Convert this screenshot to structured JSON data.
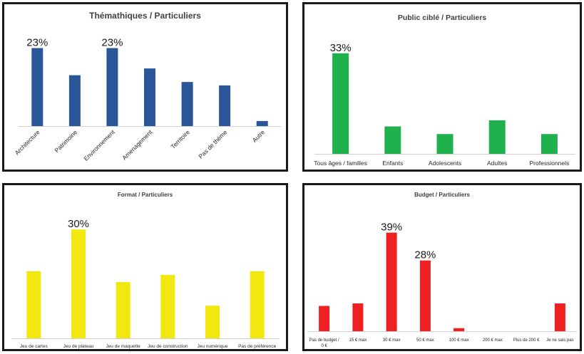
{
  "chart_data": [
    {
      "type": "bar",
      "title": "Thémathiques / Particuliers",
      "categories": [
        "Architecture",
        "Patrimoine",
        "Environnement",
        "Amenagement",
        "Territoire",
        "Pas de thème",
        "Autre"
      ],
      "values": [
        23,
        15,
        23,
        17,
        13,
        12,
        1.5
      ],
      "data_labels": [
        "23%",
        "",
        "23%",
        "",
        "",
        "",
        ""
      ],
      "color": "#2a5699",
      "ylim": [
        0,
        25
      ],
      "grid": false,
      "tick_rotation": -45
    },
    {
      "type": "bar",
      "title": "Public ciblé / Particuliers",
      "categories": [
        "Tous âges / familles",
        "Enfants",
        "Adolescents",
        "Adultes",
        "Professionnels"
      ],
      "values": [
        33,
        9,
        6.5,
        11,
        6.5
      ],
      "data_labels": [
        "33%",
        "",
        "",
        "",
        ""
      ],
      "color": "#1fb14c",
      "ylim": [
        0,
        36
      ],
      "grid": false
    },
    {
      "type": "bar",
      "title": "Format / Particuliers",
      "categories": [
        "Jeu de cartes",
        "Jeu de plateau",
        "Jeu de maquette",
        "Jeu de construction",
        "Jeu numérique",
        "Pas de préférence"
      ],
      "values": [
        18.5,
        30,
        15.5,
        17.5,
        9,
        18.5
      ],
      "data_labels": [
        "",
        "30%",
        "",
        "",
        "",
        ""
      ],
      "color": "#f2e70f",
      "ylim": [
        0,
        32
      ],
      "grid": false
    },
    {
      "type": "bar",
      "title": "Budget / Particuliers",
      "categories": [
        "Pas de budget / 0 €",
        "15 € max",
        "30 € max",
        "50 € max",
        "100 € max",
        "200 € max",
        "Plus de 200 €",
        "Je ne sais pas"
      ],
      "values": [
        10,
        11,
        39,
        28,
        1.2,
        0,
        0,
        11
      ],
      "data_labels": [
        "",
        "",
        "39%",
        "28%",
        "",
        "",
        "",
        ""
      ],
      "color": "#ee2022",
      "ylim": [
        0,
        42
      ],
      "grid": false
    }
  ]
}
